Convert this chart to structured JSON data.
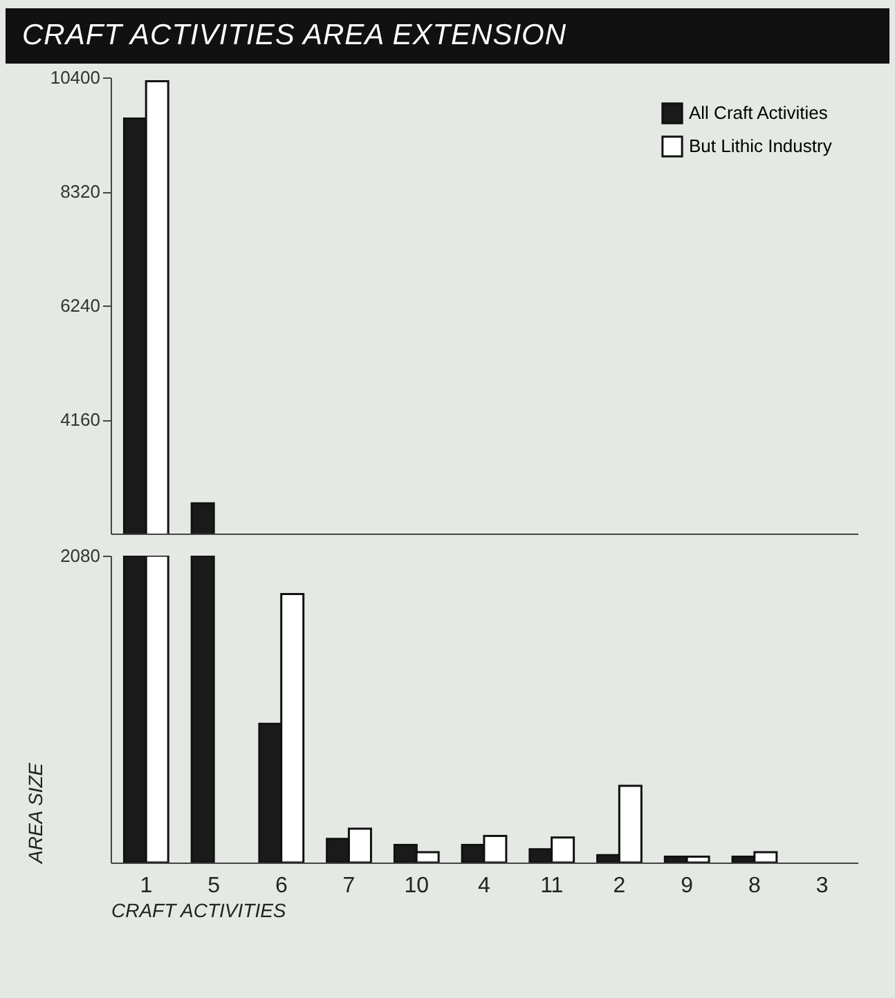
{
  "chart_data": [
    {
      "type": "bar",
      "title": "CRAFT ACTIVITIES AREA EXTENSION",
      "categories": [
        "1",
        "5",
        "6",
        "7",
        "10",
        "4",
        "11",
        "2",
        "9",
        "8",
        "3"
      ],
      "series": [
        {
          "name": "All Craft Activities",
          "color": "#1a1a1a",
          "values": [
            9650,
            2630,
            null,
            null,
            null,
            null,
            null,
            null,
            null,
            null,
            null
          ]
        },
        {
          "name": "But Lithic Industry",
          "color": "#ffffff",
          "values": [
            10330,
            null,
            null,
            null,
            null,
            null,
            null,
            null,
            null,
            null,
            null
          ]
        }
      ],
      "ylim": [
        2080,
        10400
      ],
      "yticks": [
        4160,
        6240,
        8320,
        10400
      ],
      "tick_labels": "y",
      "legend": "top right",
      "grid": false
    },
    {
      "type": "bar",
      "xlabel": "CRAFT ACTIVITIES",
      "ylabel": "AREA SIZE",
      "categories": [
        "1",
        "5",
        "6",
        "7",
        "10",
        "4",
        "11",
        "2",
        "9",
        "8",
        "3"
      ],
      "series": [
        {
          "color": "#1a1a1a",
          "values": [
            2080,
            2080,
            940,
            160,
            120,
            120,
            90,
            50,
            40,
            40,
            null
          ]
        },
        {
          "color": "#ffffff",
          "values": [
            2080,
            null,
            1820,
            230,
            70,
            180,
            170,
            520,
            40,
            70,
            null
          ]
        }
      ],
      "ylim": [
        0,
        2080
      ],
      "yticks": [
        2080
      ],
      "legend": false,
      "grid": false
    }
  ]
}
